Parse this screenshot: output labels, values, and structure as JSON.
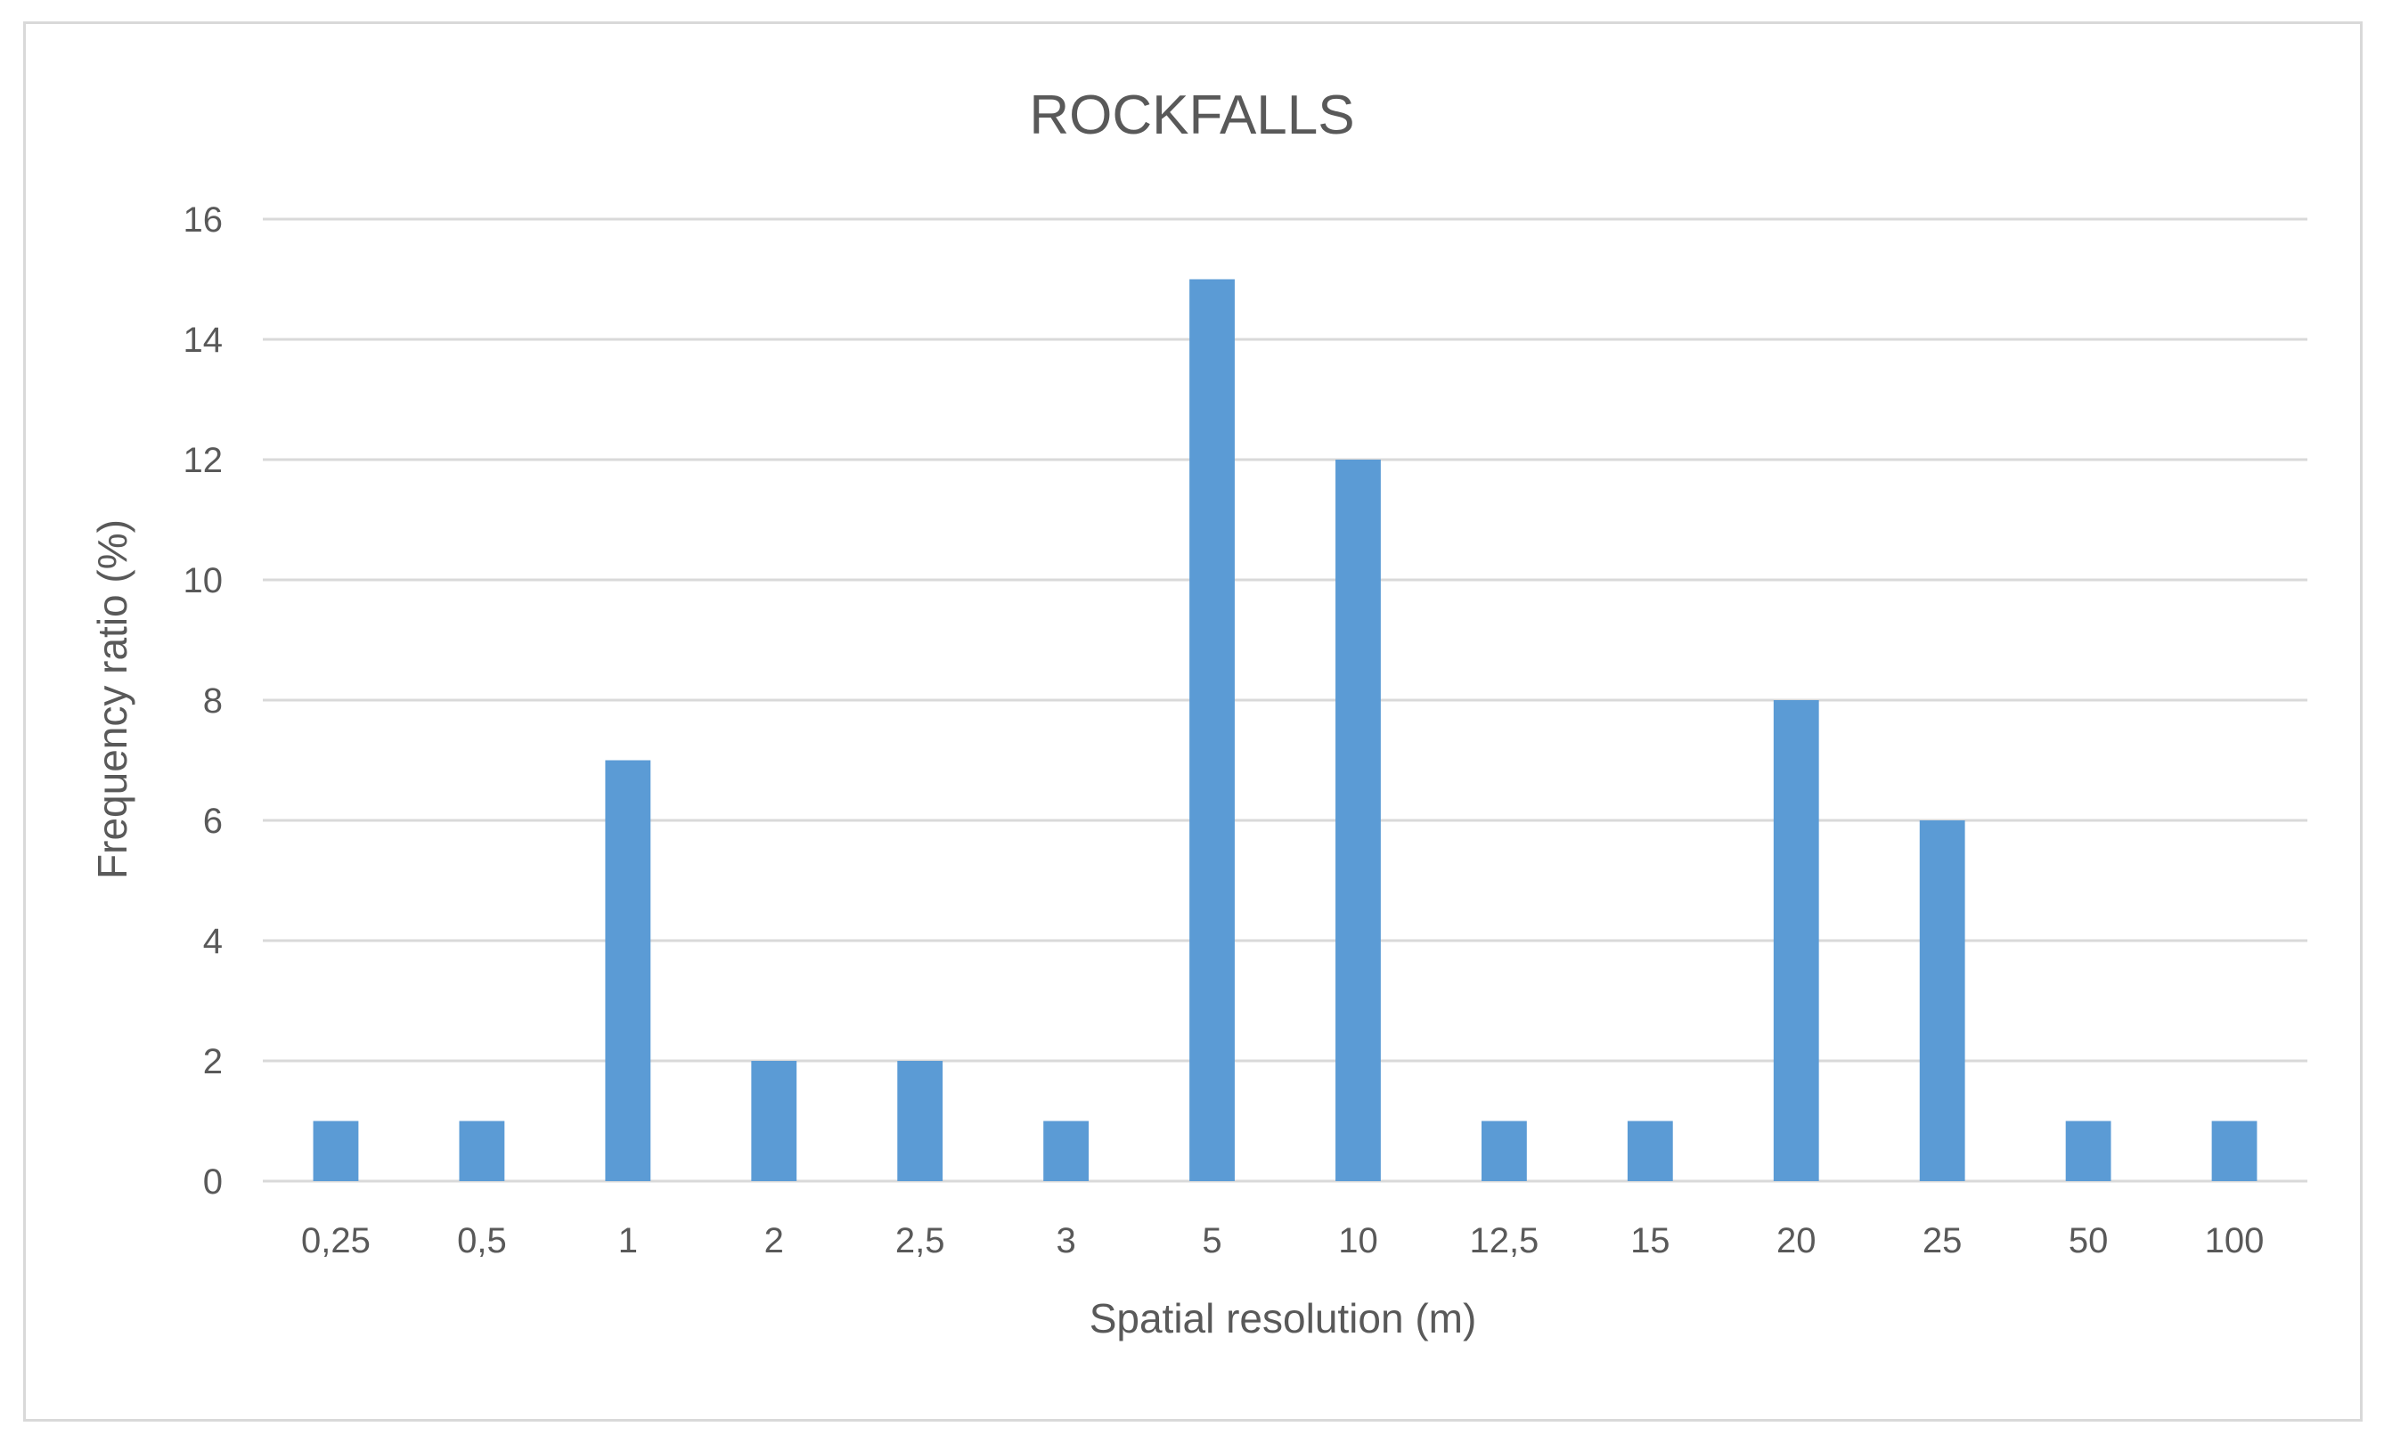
{
  "chart_data": {
    "type": "bar",
    "title": "ROCKFALLS",
    "xlabel": "Spatial resolution (m)",
    "ylabel": "Frequency ratio (%)",
    "categories": [
      "0,25",
      "0,5",
      "1",
      "2",
      "2,5",
      "3",
      "5",
      "10",
      "12,5",
      "15",
      "20",
      "25",
      "50",
      "100"
    ],
    "values": [
      1,
      1,
      7,
      2,
      2,
      1,
      15,
      12,
      1,
      1,
      8,
      6,
      1,
      1
    ],
    "ylim": [
      0,
      16
    ],
    "yticks": [
      "0",
      "2",
      "4",
      "6",
      "8",
      "10",
      "12",
      "14",
      "16"
    ],
    "grid": true,
    "legend": "none",
    "colors": {
      "bar": "#5b9bd5",
      "text": "#595959",
      "grid": "#d9d9d9"
    }
  }
}
